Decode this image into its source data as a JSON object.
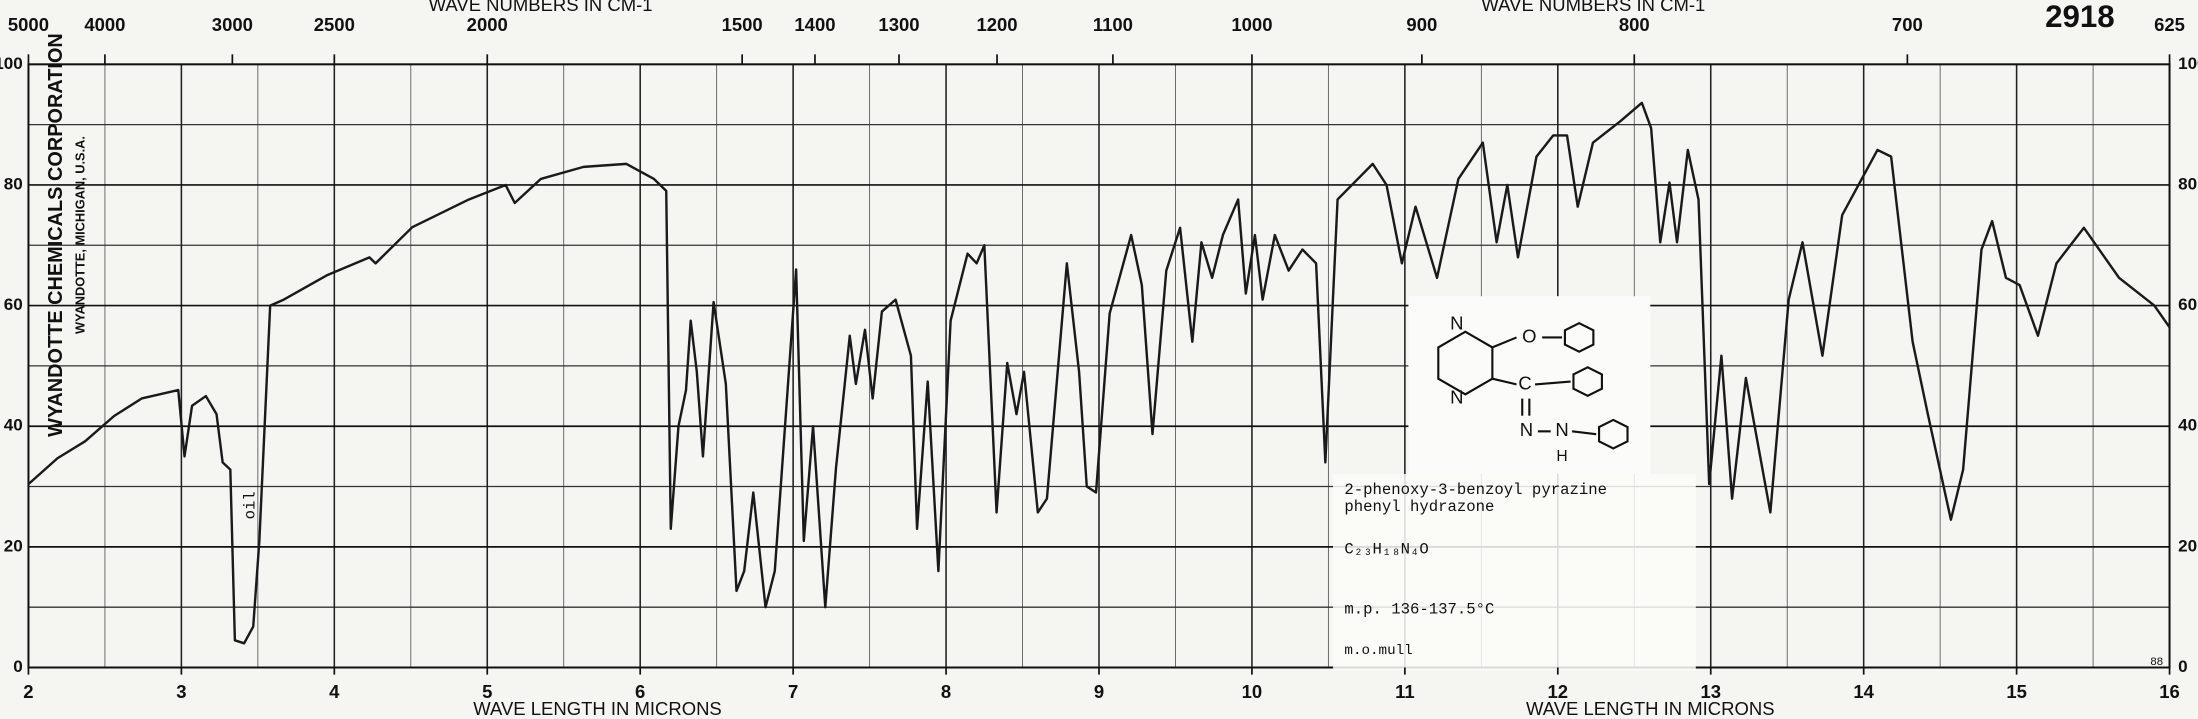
{
  "chart_data": {
    "type": "line",
    "top_axis_label": "WAVE NUMBERS IN CM-1",
    "x_label": "WAVE LENGTH IN MICRONS",
    "chart_number": "2918",
    "manufacturer": "WYANDOTTE CHEMICALS CORPORATION",
    "location": "WYANDOTTE, MICHIGAN, U.S.A.",
    "band_note": "oil",
    "sheet_note": "88",
    "compound": {
      "name_lines": [
        "2-phenoxy-3-benzoyl pyrazine",
        "phenyl hydrazone"
      ],
      "formula": "C₂₃H₁₈N₄O",
      "melting_point": "m.p. 136-137.5°C",
      "sample_prep": "m.o.mull",
      "structure_labels": [
        "N",
        "N",
        "O",
        "C",
        "N",
        "N",
        "H"
      ]
    },
    "color": "#1a1a1a",
    "grid": true,
    "xlim": [
      2,
      16
    ],
    "ylim": [
      0,
      100
    ],
    "xticks": [
      2,
      3,
      4,
      5,
      6,
      7,
      8,
      9,
      10,
      11,
      12,
      13,
      14,
      15,
      16
    ],
    "x_minor_ticks": [
      2.5,
      3.5,
      4.5,
      5.5,
      6.5,
      7.5,
      8.5,
      9.5,
      10.5,
      11.5,
      12.5,
      13.5,
      14.5,
      15.5
    ],
    "yticks": [
      0,
      20,
      40,
      60,
      80,
      100
    ],
    "y_minor_ticks": [
      10,
      30,
      50,
      70,
      90
    ],
    "x2ticks": [
      5000,
      4000,
      3000,
      2500,
      2000,
      1500,
      1400,
      1300,
      1200,
      1100,
      1000,
      900,
      800,
      700,
      625
    ],
    "x": [
      2.0,
      2.19,
      2.37,
      2.56,
      2.74,
      2.98,
      3.02,
      3.07,
      3.16,
      3.23,
      3.27,
      3.32,
      3.35,
      3.41,
      3.47,
      3.51,
      3.58,
      3.67,
      3.95,
      4.23,
      4.27,
      4.51,
      4.88,
      5.12,
      5.18,
      5.35,
      5.63,
      5.91,
      6.09,
      6.17,
      6.2,
      6.25,
      6.3,
      6.33,
      6.37,
      6.41,
      6.48,
      6.56,
      6.63,
      6.68,
      6.74,
      6.82,
      6.88,
      7.02,
      7.07,
      7.13,
      7.21,
      7.28,
      7.37,
      7.41,
      7.47,
      7.52,
      7.58,
      7.67,
      7.77,
      7.81,
      7.88,
      7.95,
      8.03,
      8.14,
      8.2,
      8.25,
      8.33,
      8.4,
      8.46,
      8.51,
      8.6,
      8.66,
      8.79,
      8.87,
      8.92,
      8.98,
      9.07,
      9.21,
      9.28,
      9.35,
      9.44,
      9.53,
      9.61,
      9.67,
      9.74,
      9.81,
      9.91,
      9.96,
      10.02,
      10.07,
      10.15,
      10.24,
      10.33,
      10.42,
      10.48,
      10.56,
      10.79,
      10.88,
      10.98,
      11.07,
      11.21,
      11.35,
      11.51,
      11.6,
      11.67,
      11.74,
      11.86,
      11.97,
      12.06,
      12.13,
      12.23,
      12.41,
      12.55,
      12.61,
      12.67,
      12.73,
      12.78,
      12.85,
      12.92,
      12.99,
      13.07,
      13.14,
      13.23,
      13.39,
      13.51,
      13.6,
      13.73,
      13.86,
      14.09,
      14.18,
      14.32,
      14.42,
      14.57,
      14.65,
      14.77,
      14.84,
      14.93,
      15.02,
      15.14,
      15.26,
      15.44,
      15.67,
      15.9,
      16.0
    ],
    "values": [
      30.4,
      34.7,
      37.5,
      41.7,
      44.6,
      46,
      35,
      43.4,
      45,
      42,
      34,
      32.8,
      4.5,
      4,
      6.8,
      21,
      60,
      61,
      65,
      68,
      67,
      73,
      77.6,
      80,
      77,
      81,
      83,
      83.5,
      81,
      79,
      23,
      40,
      46,
      57.5,
      49,
      35,
      60.6,
      47,
      12.7,
      16,
      29,
      10,
      16,
      66,
      21,
      40,
      10,
      33,
      55,
      47,
      56,
      44.6,
      59,
      61,
      51.7,
      23,
      47.4,
      16,
      57.5,
      68.6,
      67,
      70,
      25.7,
      50.5,
      42,
      49,
      25.7,
      28,
      67,
      49,
      30,
      29,
      58.7,
      71.7,
      63.4,
      38.7,
      65.8,
      72.9,
      54,
      70.5,
      64.6,
      71.7,
      77.6,
      62,
      71.7,
      61,
      71.7,
      65.8,
      69.3,
      67,
      34,
      77.6,
      83.5,
      80,
      67,
      76.4,
      64.6,
      81,
      87,
      70.5,
      80,
      68,
      84.7,
      88.2,
      88.2,
      76.4,
      87,
      90.6,
      93.6,
      89.4,
      70.5,
      80.4,
      70.5,
      85.8,
      77.6,
      30.4,
      51.7,
      28,
      48,
      25.7,
      61,
      70.5,
      51.7,
      75,
      85.8,
      84.7,
      54,
      42,
      24.5,
      32.8,
      69.3,
      74,
      64.6,
      63.4,
      55,
      67,
      72.9,
      64.6,
      60,
      56.4
    ]
  }
}
